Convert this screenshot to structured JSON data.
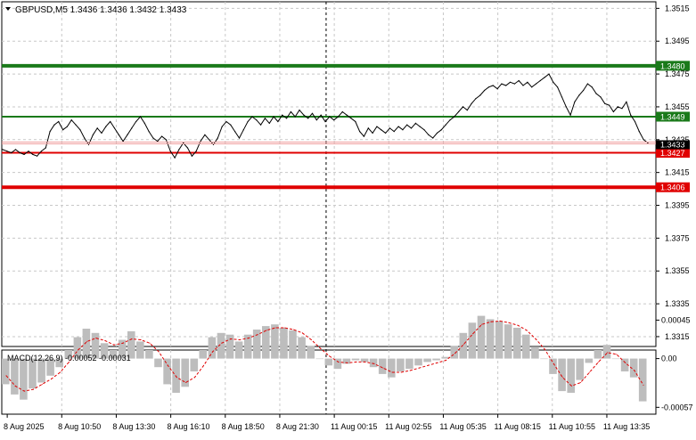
{
  "chart_data": {
    "type": "line",
    "symbol_header": "GBPUSD,M5  1.3436 1.3436 1.3432 1.3433",
    "colors": {
      "background": "#ffffff",
      "grid": "#c8c8c8",
      "price_line": "#000000",
      "resistance": "#1a7a1a",
      "support": "#e00000",
      "macd_hist": "#bdbdbd",
      "macd_signal": "#e00000",
      "current_price": "#000000",
      "bid_line": "#f0a0a0"
    },
    "price_axis": {
      "ylim": [
        1.3309,
        1.3519
      ],
      "ticks": [
        "1.3515",
        "1.3495",
        "1.3475",
        "1.3455",
        "1.3435",
        "1.3415",
        "1.3395",
        "1.3375",
        "1.3355",
        "1.3335",
        "1.3315"
      ]
    },
    "time_axis": {
      "labels": [
        "8 Aug 2025",
        "8 Aug 10:50",
        "8 Aug 13:30",
        "8 Aug 16:10",
        "8 Aug 18:50",
        "8 Aug 21:30",
        "11 Aug 00:15",
        "11 Aug 02:55",
        "11 Aug 05:35",
        "11 Aug 08:15",
        "11 Aug 10:55",
        "11 Aug 13:35"
      ],
      "session_break_index": 6
    },
    "levels": [
      {
        "name": "1.3480",
        "value": 1.348,
        "type": "resistance-strong"
      },
      {
        "name": "1.3449",
        "value": 1.3449,
        "type": "resistance"
      },
      {
        "name": "1.3427",
        "value": 1.3427,
        "type": "support"
      },
      {
        "name": "1.3406",
        "value": 1.3406,
        "type": "support-strong"
      }
    ],
    "current_price": {
      "label": "1.3433",
      "value": 1.3433
    },
    "series": [
      {
        "values": [
          1.3429,
          1.3428,
          1.3427,
          1.3429,
          1.3427,
          1.3426,
          1.3428,
          1.3426,
          1.3425,
          1.3428,
          1.343,
          1.344,
          1.3444,
          1.3446,
          1.3441,
          1.3443,
          1.3447,
          1.3444,
          1.3441,
          1.3436,
          1.3432,
          1.3438,
          1.3442,
          1.3439,
          1.3443,
          1.3446,
          1.3442,
          1.3438,
          1.3434,
          1.3438,
          1.3442,
          1.3446,
          1.3449,
          1.3445,
          1.344,
          1.3436,
          1.3434,
          1.3437,
          1.3435,
          1.3428,
          1.3424,
          1.3429,
          1.3433,
          1.343,
          1.3425,
          1.3428,
          1.3434,
          1.3438,
          1.3435,
          1.3432,
          1.3436,
          1.3443,
          1.3446,
          1.3444,
          1.344,
          1.3436,
          1.3441,
          1.3446,
          1.3449,
          1.3447,
          1.3444,
          1.3448,
          1.3445,
          1.3449,
          1.3446,
          1.345,
          1.3448,
          1.3452,
          1.3449,
          1.3453,
          1.345,
          1.3448,
          1.3451,
          1.3447,
          1.345,
          1.3446,
          1.3449,
          1.3447,
          1.3449,
          1.3452,
          1.345,
          1.3448,
          1.3446,
          1.344,
          1.3437,
          1.3442,
          1.3439,
          1.3443,
          1.3441,
          1.3439,
          1.3442,
          1.344,
          1.3443,
          1.3441,
          1.3444,
          1.3442,
          1.3445,
          1.3443,
          1.3441,
          1.3438,
          1.3436,
          1.3439,
          1.3441,
          1.3444,
          1.3447,
          1.3449,
          1.3452,
          1.3455,
          1.3453,
          1.3457,
          1.346,
          1.3462,
          1.3465,
          1.3467,
          1.3468,
          1.3466,
          1.3469,
          1.3468,
          1.347,
          1.3469,
          1.3471,
          1.3468,
          1.347,
          1.3467,
          1.3469,
          1.3471,
          1.3473,
          1.3475,
          1.347,
          1.3467,
          1.3461,
          1.3455,
          1.345,
          1.3458,
          1.3462,
          1.3465,
          1.3469,
          1.3467,
          1.3463,
          1.3461,
          1.3457,
          1.3456,
          1.3452,
          1.3455,
          1.3454,
          1.3458,
          1.345,
          1.3446,
          1.344,
          1.3435,
          1.3433
        ]
      }
    ],
    "macd": {
      "label": "MACD(12,26,9) -0.00052 -0.00031",
      "ylim": [
        -0.00065,
        0.0001
      ],
      "ticks": [
        "0.00045",
        "0.00",
        "-0.00057"
      ],
      "tick_values": [
        0.00045,
        0.0,
        -0.00057
      ],
      "histogram": [
        -0.0003,
        -0.00042,
        -0.00048,
        -0.00035,
        -0.00028,
        -0.0002,
        -0.0001,
        0.0001,
        0.00025,
        0.00035,
        0.0003,
        0.00018,
        0.0001,
        0.00022,
        0.00032,
        0.0002,
        0.0001,
        -0.0001,
        -0.0003,
        -0.0004,
        -0.00033,
        -0.00015,
        0.0001,
        0.00025,
        0.0003,
        0.00028,
        0.0002,
        0.00028,
        0.00034,
        0.00038,
        0.0004,
        0.00036,
        0.00033,
        0.00025,
        0.00015,
        0.0,
        -8e-05,
        -0.00012,
        -6e-05,
        -2e-05,
        -4e-05,
        -0.0001,
        -0.00018,
        -0.00022,
        -0.00015,
        -0.00012,
        -8e-05,
        -4e-05,
        -2e-05,
        2e-05,
        0.00015,
        0.0003,
        0.00042,
        0.0005,
        0.00046,
        0.00044,
        0.0004,
        0.00036,
        0.00028,
        0.00014,
        0.0,
        -0.00018,
        -0.00038,
        -0.0004,
        -0.00025,
        -5e-05,
        0.0001,
        0.00016,
        0.0,
        -0.00015,
        -0.00022,
        -0.0005
      ],
      "signal": [
        -0.0002,
        -0.00032,
        -0.00038,
        -0.00036,
        -0.0003,
        -0.00024,
        -0.00016,
        -4e-05,
        0.0001,
        0.0002,
        0.00024,
        0.00021,
        0.00016,
        0.00018,
        0.00023,
        0.00022,
        0.00018,
        8e-05,
        -8e-05,
        -0.00022,
        -0.00028,
        -0.00022,
        -8e-05,
        8e-05,
        0.00018,
        0.00023,
        0.00022,
        0.00024,
        0.00028,
        0.00033,
        0.00036,
        0.00036,
        0.00034,
        0.0003,
        0.00022,
        0.00012,
        3e-05,
        -4e-05,
        -5e-05,
        -4e-05,
        -4e-05,
        -6e-05,
        -0.00011,
        -0.00016,
        -0.00016,
        -0.00014,
        -0.00011,
        -8e-05,
        -5e-05,
        -2e-05,
        6e-05,
        0.00017,
        0.00029,
        0.0004,
        0.00043,
        0.00044,
        0.00042,
        0.00039,
        0.00033,
        0.00023,
        0.00011,
        -6e-05,
        -0.00022,
        -0.00032,
        -0.00028,
        -0.00016,
        -4e-05,
        7e-05,
        5e-05,
        -5e-05,
        -0.00014,
        -0.00031
      ]
    }
  }
}
